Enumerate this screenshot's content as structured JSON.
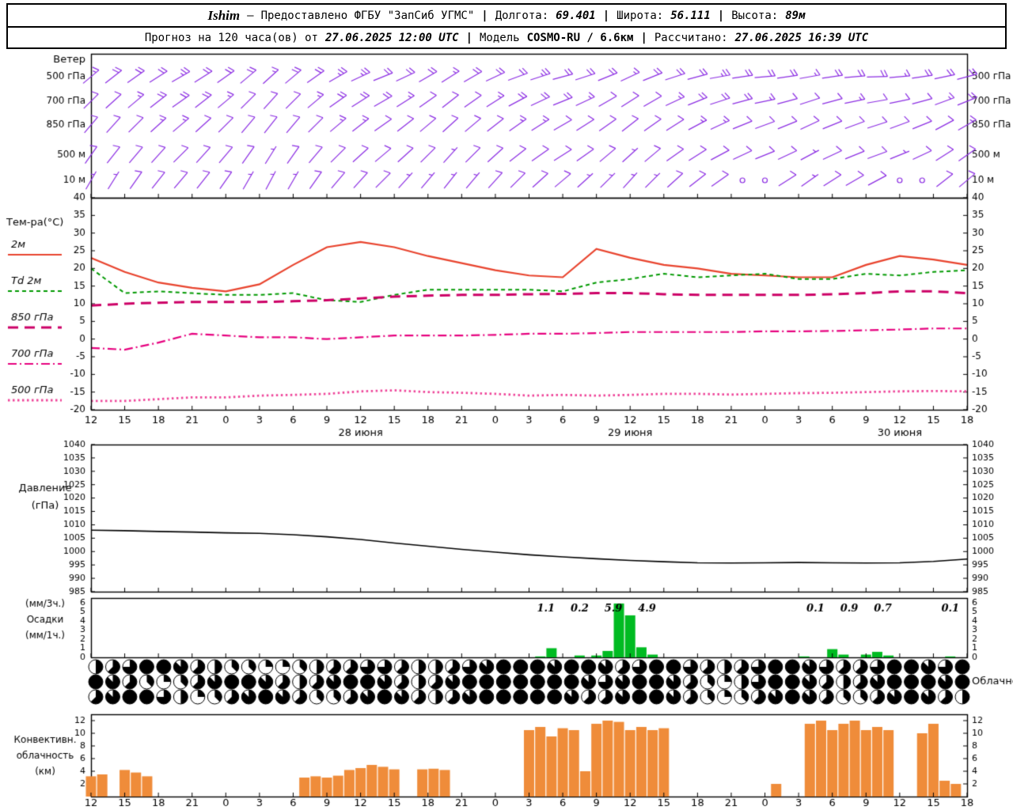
{
  "header": {
    "station": "Ishim",
    "dash": "—",
    "provider": "Предоставлено ФГБУ \"ЗапСиб УГМС\"",
    "sep": "|",
    "lon_label": "Долгота:",
    "lon": "69.401",
    "lat_label": "Широта:",
    "lat": "56.111",
    "alt_label": "Высота:",
    "alt": "89м",
    "fc_label": "Прогноз на 120 часа(ов) от",
    "fc_time": "27.06.2025 12:00 UTC",
    "model_label": "Модель",
    "model": "COSMO-RU / 6.6км",
    "calc_label": "Рассчитано:",
    "calc_time": "27.06.2025 16:39 UTC"
  },
  "time_axis": {
    "start": "27.06.2025 12:00 UTC",
    "step_hours": 3,
    "hours_span": 78,
    "hour_labels": [
      "12",
      "15",
      "18",
      "21",
      "0",
      "3",
      "6",
      "9",
      "12",
      "15",
      "18",
      "21",
      "0",
      "3",
      "6",
      "9",
      "12",
      "15",
      "18",
      "21",
      "0",
      "3",
      "6",
      "9",
      "12",
      "15",
      "18"
    ],
    "date_labels": [
      {
        "text": "28 июня",
        "tick_index": 8
      },
      {
        "text": "29 июня",
        "tick_index": 16
      },
      {
        "text": "30 июня",
        "tick_index": 24
      }
    ]
  },
  "chart_data": [
    {
      "id": "wind",
      "type": "wind-barbs",
      "title": "Ветер",
      "color": "#8a2be2",
      "barb_step_hours": 2,
      "levels": [
        {
          "label": "500 гПа",
          "dirs": [
            50,
            52,
            55,
            58,
            60,
            58,
            55,
            50,
            48,
            50,
            55,
            60,
            65,
            68,
            65,
            60,
            58,
            60,
            65,
            70,
            72,
            75,
            72,
            68,
            65,
            68,
            72,
            75,
            80,
            82,
            85,
            82,
            80,
            82,
            85,
            88,
            85,
            82,
            78,
            75
          ],
          "spds": [
            15,
            18,
            20,
            22,
            25,
            22,
            20,
            18,
            15,
            18,
            20,
            25,
            25,
            22,
            20,
            18,
            15,
            18,
            20,
            22,
            25,
            22,
            20,
            18,
            15,
            18,
            20,
            22,
            25,
            22,
            20,
            18,
            15,
            18,
            20,
            18,
            15,
            18,
            20,
            22
          ]
        },
        {
          "label": "700 гПа",
          "dirs": [
            45,
            48,
            50,
            52,
            55,
            52,
            50,
            45,
            42,
            45,
            50,
            55,
            58,
            60,
            58,
            55,
            52,
            55,
            58,
            62,
            65,
            68,
            65,
            60,
            58,
            60,
            65,
            68,
            72,
            75,
            78,
            75,
            72,
            75,
            78,
            80,
            78,
            75,
            70,
            68
          ],
          "spds": [
            10,
            12,
            15,
            18,
            20,
            18,
            15,
            12,
            10,
            12,
            15,
            18,
            20,
            18,
            15,
            12,
            10,
            12,
            15,
            18,
            20,
            18,
            15,
            12,
            10,
            12,
            15,
            18,
            20,
            18,
            15,
            12,
            10,
            12,
            15,
            12,
            10,
            12,
            15,
            18
          ]
        },
        {
          "label": "850 гПа",
          "dirs": [
            40,
            42,
            45,
            48,
            50,
            48,
            45,
            40,
            38,
            40,
            45,
            50,
            52,
            55,
            52,
            50,
            48,
            50,
            52,
            55,
            58,
            60,
            58,
            55,
            52,
            55,
            58,
            62,
            65,
            68,
            70,
            68,
            65,
            68,
            70,
            72,
            70,
            68,
            62,
            60
          ],
          "spds": [
            10,
            10,
            12,
            15,
            15,
            12,
            10,
            10,
            8,
            10,
            12,
            15,
            15,
            12,
            10,
            10,
            8,
            10,
            12,
            15,
            15,
            12,
            10,
            10,
            8,
            10,
            12,
            15,
            15,
            12,
            10,
            10,
            8,
            10,
            12,
            10,
            8,
            10,
            12,
            15
          ]
        },
        {
          "label": "500 м",
          "dirs": [
            35,
            38,
            40,
            42,
            45,
            42,
            40,
            35,
            32,
            35,
            40,
            45,
            48,
            50,
            48,
            45,
            42,
            45,
            48,
            52,
            55,
            58,
            55,
            50,
            48,
            50,
            55,
            58,
            62,
            65,
            68,
            65,
            62,
            65,
            68,
            70,
            68,
            65,
            58,
            55
          ],
          "spds": [
            8,
            10,
            10,
            12,
            12,
            10,
            10,
            8,
            6,
            8,
            10,
            12,
            12,
            10,
            8,
            8,
            6,
            8,
            10,
            12,
            12,
            10,
            8,
            8,
            6,
            8,
            10,
            12,
            12,
            10,
            8,
            8,
            6,
            8,
            10,
            8,
            6,
            8,
            10,
            12
          ]
        },
        {
          "label": "10 м",
          "dirs": [
            30,
            32,
            35,
            38,
            40,
            38,
            35,
            30,
            28,
            30,
            35,
            40,
            42,
            45,
            42,
            40,
            38,
            40,
            42,
            45,
            48,
            50,
            48,
            45,
            42,
            45,
            48,
            52,
            55,
            58,
            60,
            58,
            55,
            58,
            60,
            62,
            60,
            58,
            52,
            50
          ],
          "spds": [
            5,
            6,
            8,
            8,
            10,
            8,
            8,
            6,
            5,
            6,
            8,
            10,
            10,
            8,
            6,
            6,
            5,
            6,
            8,
            10,
            10,
            8,
            6,
            6,
            5,
            6,
            8,
            10,
            10,
            0,
            0,
            8,
            6,
            8,
            10,
            8,
            0,
            0,
            8,
            10
          ]
        }
      ]
    },
    {
      "id": "temperature",
      "type": "line",
      "title": "Тем-ра(°C)",
      "ylim": [
        -20,
        40
      ],
      "ytick_step": 5,
      "x_step_hours": 3,
      "series": [
        {
          "name": "2м",
          "color": "#e8432d",
          "style": "solid",
          "width": 2.2,
          "values": [
            23,
            19,
            16,
            14.5,
            13.5,
            15.5,
            21,
            26,
            27.5,
            26,
            23.5,
            21.5,
            19.5,
            18,
            17.5,
            25.5,
            23,
            21,
            20,
            18.5,
            18,
            17.5,
            17.5,
            21,
            23.5,
            22.5,
            21
          ]
        },
        {
          "name": "Td 2м",
          "color": "#009900",
          "style": "shortdash",
          "width": 2,
          "values": [
            20,
            13,
            13.5,
            13,
            12.5,
            12.5,
            13,
            11,
            10.5,
            12.5,
            14,
            14,
            14,
            14,
            13.5,
            16,
            17,
            18.5,
            17.5,
            18,
            18.5,
            17,
            17,
            18.5,
            18,
            19,
            19.5
          ]
        },
        {
          "name": "850 гПа",
          "color": "#cc0066",
          "style": "longdash",
          "width": 3,
          "values": [
            9.5,
            10,
            10.3,
            10.5,
            10.5,
            10.5,
            10.7,
            11,
            11.5,
            12,
            12.3,
            12.5,
            12.5,
            12.7,
            12.8,
            13,
            13,
            12.7,
            12.5,
            12.5,
            12.5,
            12.5,
            12.7,
            13,
            13.5,
            13.5,
            13
          ]
        },
        {
          "name": "700 гПа",
          "color": "#e6007e",
          "style": "dashdot",
          "width": 2.2,
          "values": [
            -2.5,
            -3,
            -1,
            1.5,
            1,
            0.5,
            0.5,
            0,
            0.5,
            1,
            1,
            1,
            1.2,
            1.5,
            1.5,
            1.7,
            2,
            2,
            2,
            2,
            2.2,
            2.2,
            2.3,
            2.5,
            2.7,
            3,
            3
          ]
        },
        {
          "name": "500 гПа",
          "color": "#ee4499",
          "style": "densedot",
          "width": 2.8,
          "values": [
            -17.5,
            -17.5,
            -17,
            -16.5,
            -16.5,
            -16,
            -15.8,
            -15.5,
            -14.8,
            -14.5,
            -15,
            -15.2,
            -15.5,
            -16,
            -15.8,
            -16,
            -15.8,
            -15.5,
            -15.5,
            -15.7,
            -15.5,
            -15.3,
            -15.2,
            -15,
            -14.8,
            -14.7,
            -14.8
          ]
        }
      ]
    },
    {
      "id": "pressure",
      "type": "line",
      "title": "Давление",
      "unit": "(гПа)",
      "ylim": [
        985,
        1040
      ],
      "ytick_step": 5,
      "x_step_hours": 3,
      "series": [
        {
          "name": "Давление",
          "color": "#000000",
          "values": [
            1008,
            1007.8,
            1007.5,
            1007.3,
            1007,
            1006.8,
            1006.3,
            1005.5,
            1004.5,
            1003.2,
            1002,
            1000.8,
            999.8,
            998.8,
            998,
            997.3,
            996.7,
            996.2,
            995.8,
            995.7,
            995.8,
            995.9,
            995.8,
            995.7,
            995.8,
            996.3,
            997.2
          ]
        }
      ]
    },
    {
      "id": "precipitation",
      "type": "bar",
      "title_lines": [
        "(мм/3ч.)",
        "Осадки",
        "(мм/1ч.)"
      ],
      "ylim": [
        0,
        6.5
      ],
      "yticks": [
        0,
        1,
        2,
        3,
        4,
        5,
        6
      ],
      "color": "#00bb22",
      "unit_hours": 1,
      "bars": [
        [
          40,
          0.1
        ],
        [
          41,
          1.0
        ],
        [
          43.5,
          0.2
        ],
        [
          45,
          0.2
        ],
        [
          46,
          0.7
        ],
        [
          47,
          5.9
        ],
        [
          48,
          4.6
        ],
        [
          49,
          1.1
        ],
        [
          50,
          0.3
        ],
        [
          63.5,
          0.1
        ],
        [
          66,
          0.9
        ],
        [
          67,
          0.3
        ],
        [
          69,
          0.3
        ],
        [
          70,
          0.6
        ],
        [
          71,
          0.2
        ],
        [
          76.5,
          0.1
        ]
      ],
      "labels_3h": [
        {
          "t": 40.5,
          "text": "1.1"
        },
        {
          "t": 43.5,
          "text": "0.2"
        },
        {
          "t": 46.5,
          "text": "5.9"
        },
        {
          "t": 49.5,
          "text": "4.9"
        },
        {
          "t": 64.5,
          "text": "0.1"
        },
        {
          "t": 67.5,
          "text": "0.9"
        },
        {
          "t": 70.5,
          "text": "0.7"
        },
        {
          "t": 76.5,
          "text": "0.1"
        }
      ]
    },
    {
      "id": "cloudiness",
      "type": "cloud-cover",
      "title": "Облачность",
      "symbol_step_hours": 1.5,
      "octas_scale": "0-8",
      "rows": [
        [
          4,
          5,
          6,
          8,
          8,
          7,
          5,
          4,
          3,
          3,
          2,
          2,
          3,
          4,
          5,
          5,
          6,
          6,
          5,
          4,
          4,
          5,
          6,
          7,
          8,
          8,
          8,
          7,
          8,
          8,
          7,
          5,
          6,
          8,
          8,
          6,
          5,
          4,
          5,
          6,
          8,
          8,
          7,
          6,
          5,
          5,
          6,
          8,
          8,
          7,
          6,
          8
        ],
        [
          8,
          7,
          5,
          3,
          2,
          3,
          5,
          7,
          8,
          8,
          7,
          5,
          4,
          5,
          7,
          8,
          8,
          7,
          5,
          4,
          5,
          7,
          8,
          8,
          8,
          8,
          8,
          8,
          8,
          7,
          6,
          7,
          8,
          8,
          7,
          5,
          3,
          2,
          4,
          6,
          8,
          8,
          7,
          5,
          4,
          5,
          7,
          8,
          8,
          8,
          7,
          8
        ],
        [
          5,
          7,
          8,
          8,
          6,
          4,
          2,
          3,
          5,
          7,
          8,
          7,
          5,
          3,
          3,
          5,
          7,
          8,
          7,
          5,
          4,
          5,
          7,
          8,
          8,
          8,
          8,
          8,
          7,
          5,
          5,
          7,
          8,
          8,
          7,
          5,
          3,
          2,
          3,
          5,
          7,
          8,
          7,
          5,
          3,
          3,
          5,
          7,
          8,
          7,
          5,
          4
        ]
      ]
    },
    {
      "id": "convective",
      "type": "bar",
      "title_lines": [
        "Конвективн.",
        "облачность",
        "(км)"
      ],
      "ylim": [
        0,
        13
      ],
      "yticks": [
        2,
        4,
        6,
        8,
        10,
        12
      ],
      "color": "#ef8c3a",
      "unit_hours": 1,
      "bars": [
        [
          0,
          3.2
        ],
        [
          1,
          3.5
        ],
        [
          3,
          4.2
        ],
        [
          4,
          3.8
        ],
        [
          5,
          3.2
        ],
        [
          19,
          3
        ],
        [
          20,
          3.2
        ],
        [
          21,
          3
        ],
        [
          22,
          3.3
        ],
        [
          23,
          4.2
        ],
        [
          24,
          4.5
        ],
        [
          25,
          5
        ],
        [
          26,
          4.7
        ],
        [
          27,
          4.3
        ],
        [
          29.5,
          4.3
        ],
        [
          30.5,
          4.4
        ],
        [
          31.5,
          4.2
        ],
        [
          39,
          10.5
        ],
        [
          40,
          11
        ],
        [
          41,
          9.5
        ],
        [
          42,
          10.8
        ],
        [
          43,
          10.5
        ],
        [
          44,
          4
        ],
        [
          45,
          11.5
        ],
        [
          46,
          12
        ],
        [
          47,
          11.8
        ],
        [
          48,
          10.5
        ],
        [
          49,
          11
        ],
        [
          50,
          10.5
        ],
        [
          51,
          10.8
        ],
        [
          61,
          2
        ],
        [
          64,
          11.5
        ],
        [
          65,
          12
        ],
        [
          66,
          10.5
        ],
        [
          67,
          11.5
        ],
        [
          68,
          12
        ],
        [
          69,
          10.5
        ],
        [
          70,
          11
        ],
        [
          71,
          10.5
        ],
        [
          74,
          10
        ],
        [
          75,
          11.5
        ],
        [
          76,
          2.5
        ],
        [
          77,
          2
        ]
      ]
    }
  ]
}
